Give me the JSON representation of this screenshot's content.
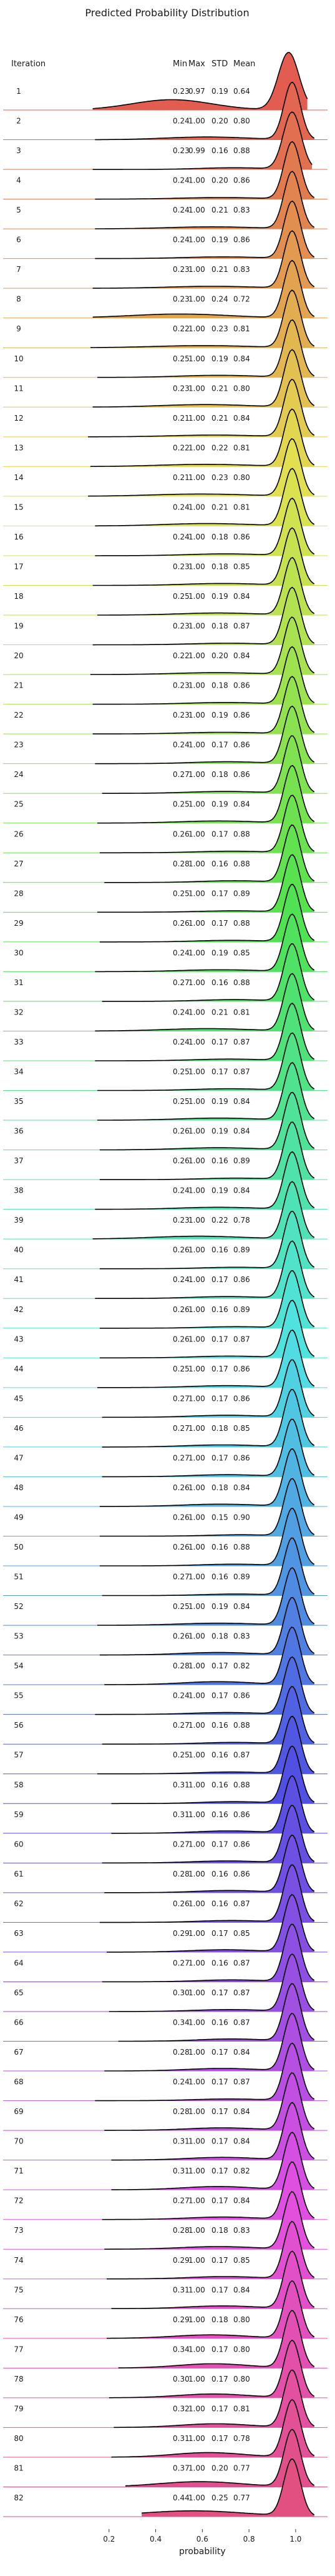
{
  "chart_data": {
    "type": "ridgeline",
    "title": "Predicted Probability Distribution",
    "row_label_header": "Iteration",
    "stat_headers": [
      "Min",
      "Max",
      "STD",
      "Mean"
    ],
    "xlabel": "probability",
    "x_ticks": [
      "0.2",
      "0.4",
      "0.6",
      "0.8",
      "1.0"
    ],
    "x_tick_values": [
      0.2,
      0.4,
      0.6,
      0.8,
      1.0
    ],
    "xlim": [
      0.0,
      1.15
    ],
    "color_scale": "husl rainbow from red (iteration 1) through orange, yellow, green, teal, blue, purple, to pink (iteration 82)",
    "rows": [
      {
        "iteration": "1",
        "min": "0.23",
        "max": "0.97",
        "std": "0.19",
        "mean": "0.64"
      },
      {
        "iteration": "2",
        "min": "0.24",
        "max": "1.00",
        "std": "0.20",
        "mean": "0.80"
      },
      {
        "iteration": "3",
        "min": "0.23",
        "max": "0.99",
        "std": "0.16",
        "mean": "0.88"
      },
      {
        "iteration": "4",
        "min": "0.24",
        "max": "1.00",
        "std": "0.20",
        "mean": "0.86"
      },
      {
        "iteration": "5",
        "min": "0.24",
        "max": "1.00",
        "std": "0.21",
        "mean": "0.83"
      },
      {
        "iteration": "6",
        "min": "0.24",
        "max": "1.00",
        "std": "0.19",
        "mean": "0.86"
      },
      {
        "iteration": "7",
        "min": "0.23",
        "max": "1.00",
        "std": "0.21",
        "mean": "0.83"
      },
      {
        "iteration": "8",
        "min": "0.23",
        "max": "1.00",
        "std": "0.24",
        "mean": "0.72"
      },
      {
        "iteration": "9",
        "min": "0.22",
        "max": "1.00",
        "std": "0.23",
        "mean": "0.81"
      },
      {
        "iteration": "10",
        "min": "0.25",
        "max": "1.00",
        "std": "0.19",
        "mean": "0.84"
      },
      {
        "iteration": "11",
        "min": "0.23",
        "max": "1.00",
        "std": "0.21",
        "mean": "0.80"
      },
      {
        "iteration": "12",
        "min": "0.21",
        "max": "1.00",
        "std": "0.21",
        "mean": "0.84"
      },
      {
        "iteration": "13",
        "min": "0.22",
        "max": "1.00",
        "std": "0.22",
        "mean": "0.81"
      },
      {
        "iteration": "14",
        "min": "0.21",
        "max": "1.00",
        "std": "0.23",
        "mean": "0.80"
      },
      {
        "iteration": "15",
        "min": "0.24",
        "max": "1.00",
        "std": "0.21",
        "mean": "0.81"
      },
      {
        "iteration": "16",
        "min": "0.24",
        "max": "1.00",
        "std": "0.18",
        "mean": "0.86"
      },
      {
        "iteration": "17",
        "min": "0.23",
        "max": "1.00",
        "std": "0.18",
        "mean": "0.85"
      },
      {
        "iteration": "18",
        "min": "0.25",
        "max": "1.00",
        "std": "0.19",
        "mean": "0.84"
      },
      {
        "iteration": "19",
        "min": "0.23",
        "max": "1.00",
        "std": "0.18",
        "mean": "0.87"
      },
      {
        "iteration": "20",
        "min": "0.22",
        "max": "1.00",
        "std": "0.20",
        "mean": "0.84"
      },
      {
        "iteration": "21",
        "min": "0.23",
        "max": "1.00",
        "std": "0.18",
        "mean": "0.86"
      },
      {
        "iteration": "22",
        "min": "0.23",
        "max": "1.00",
        "std": "0.19",
        "mean": "0.86"
      },
      {
        "iteration": "23",
        "min": "0.24",
        "max": "1.00",
        "std": "0.17",
        "mean": "0.86"
      },
      {
        "iteration": "24",
        "min": "0.27",
        "max": "1.00",
        "std": "0.18",
        "mean": "0.86"
      },
      {
        "iteration": "25",
        "min": "0.25",
        "max": "1.00",
        "std": "0.19",
        "mean": "0.84"
      },
      {
        "iteration": "26",
        "min": "0.26",
        "max": "1.00",
        "std": "0.17",
        "mean": "0.88"
      },
      {
        "iteration": "27",
        "min": "0.28",
        "max": "1.00",
        "std": "0.16",
        "mean": "0.88"
      },
      {
        "iteration": "28",
        "min": "0.25",
        "max": "1.00",
        "std": "0.17",
        "mean": "0.89"
      },
      {
        "iteration": "29",
        "min": "0.26",
        "max": "1.00",
        "std": "0.17",
        "mean": "0.88"
      },
      {
        "iteration": "30",
        "min": "0.24",
        "max": "1.00",
        "std": "0.19",
        "mean": "0.85"
      },
      {
        "iteration": "31",
        "min": "0.27",
        "max": "1.00",
        "std": "0.16",
        "mean": "0.88"
      },
      {
        "iteration": "32",
        "min": "0.24",
        "max": "1.00",
        "std": "0.21",
        "mean": "0.81"
      },
      {
        "iteration": "33",
        "min": "0.24",
        "max": "1.00",
        "std": "0.17",
        "mean": "0.87"
      },
      {
        "iteration": "34",
        "min": "0.25",
        "max": "1.00",
        "std": "0.17",
        "mean": "0.87"
      },
      {
        "iteration": "35",
        "min": "0.25",
        "max": "1.00",
        "std": "0.19",
        "mean": "0.84"
      },
      {
        "iteration": "36",
        "min": "0.26",
        "max": "1.00",
        "std": "0.19",
        "mean": "0.84"
      },
      {
        "iteration": "37",
        "min": "0.26",
        "max": "1.00",
        "std": "0.16",
        "mean": "0.89"
      },
      {
        "iteration": "38",
        "min": "0.24",
        "max": "1.00",
        "std": "0.19",
        "mean": "0.84"
      },
      {
        "iteration": "39",
        "min": "0.23",
        "max": "1.00",
        "std": "0.22",
        "mean": "0.78"
      },
      {
        "iteration": "40",
        "min": "0.26",
        "max": "1.00",
        "std": "0.16",
        "mean": "0.89"
      },
      {
        "iteration": "41",
        "min": "0.24",
        "max": "1.00",
        "std": "0.17",
        "mean": "0.86"
      },
      {
        "iteration": "42",
        "min": "0.26",
        "max": "1.00",
        "std": "0.16",
        "mean": "0.89"
      },
      {
        "iteration": "43",
        "min": "0.26",
        "max": "1.00",
        "std": "0.17",
        "mean": "0.87"
      },
      {
        "iteration": "44",
        "min": "0.25",
        "max": "1.00",
        "std": "0.17",
        "mean": "0.86"
      },
      {
        "iteration": "45",
        "min": "0.27",
        "max": "1.00",
        "std": "0.17",
        "mean": "0.86"
      },
      {
        "iteration": "46",
        "min": "0.27",
        "max": "1.00",
        "std": "0.18",
        "mean": "0.85"
      },
      {
        "iteration": "47",
        "min": "0.27",
        "max": "1.00",
        "std": "0.17",
        "mean": "0.86"
      },
      {
        "iteration": "48",
        "min": "0.26",
        "max": "1.00",
        "std": "0.18",
        "mean": "0.84"
      },
      {
        "iteration": "49",
        "min": "0.26",
        "max": "1.00",
        "std": "0.15",
        "mean": "0.90"
      },
      {
        "iteration": "50",
        "min": "0.26",
        "max": "1.00",
        "std": "0.16",
        "mean": "0.88"
      },
      {
        "iteration": "51",
        "min": "0.27",
        "max": "1.00",
        "std": "0.16",
        "mean": "0.89"
      },
      {
        "iteration": "52",
        "min": "0.25",
        "max": "1.00",
        "std": "0.19",
        "mean": "0.84"
      },
      {
        "iteration": "53",
        "min": "0.26",
        "max": "1.00",
        "std": "0.18",
        "mean": "0.83"
      },
      {
        "iteration": "54",
        "min": "0.28",
        "max": "1.00",
        "std": "0.17",
        "mean": "0.82"
      },
      {
        "iteration": "55",
        "min": "0.24",
        "max": "1.00",
        "std": "0.17",
        "mean": "0.86"
      },
      {
        "iteration": "56",
        "min": "0.27",
        "max": "1.00",
        "std": "0.16",
        "mean": "0.88"
      },
      {
        "iteration": "57",
        "min": "0.25",
        "max": "1.00",
        "std": "0.16",
        "mean": "0.87"
      },
      {
        "iteration": "58",
        "min": "0.31",
        "max": "1.00",
        "std": "0.16",
        "mean": "0.88"
      },
      {
        "iteration": "59",
        "min": "0.31",
        "max": "1.00",
        "std": "0.16",
        "mean": "0.86"
      },
      {
        "iteration": "60",
        "min": "0.27",
        "max": "1.00",
        "std": "0.17",
        "mean": "0.86"
      },
      {
        "iteration": "61",
        "min": "0.28",
        "max": "1.00",
        "std": "0.16",
        "mean": "0.86"
      },
      {
        "iteration": "62",
        "min": "0.26",
        "max": "1.00",
        "std": "0.16",
        "mean": "0.87"
      },
      {
        "iteration": "63",
        "min": "0.29",
        "max": "1.00",
        "std": "0.17",
        "mean": "0.85"
      },
      {
        "iteration": "64",
        "min": "0.27",
        "max": "1.00",
        "std": "0.16",
        "mean": "0.87"
      },
      {
        "iteration": "65",
        "min": "0.30",
        "max": "1.00",
        "std": "0.17",
        "mean": "0.87"
      },
      {
        "iteration": "66",
        "min": "0.34",
        "max": "1.00",
        "std": "0.16",
        "mean": "0.87"
      },
      {
        "iteration": "67",
        "min": "0.28",
        "max": "1.00",
        "std": "0.17",
        "mean": "0.84"
      },
      {
        "iteration": "68",
        "min": "0.24",
        "max": "1.00",
        "std": "0.17",
        "mean": "0.87"
      },
      {
        "iteration": "69",
        "min": "0.28",
        "max": "1.00",
        "std": "0.17",
        "mean": "0.84"
      },
      {
        "iteration": "70",
        "min": "0.31",
        "max": "1.00",
        "std": "0.17",
        "mean": "0.84"
      },
      {
        "iteration": "71",
        "min": "0.31",
        "max": "1.00",
        "std": "0.17",
        "mean": "0.82"
      },
      {
        "iteration": "72",
        "min": "0.27",
        "max": "1.00",
        "std": "0.17",
        "mean": "0.84"
      },
      {
        "iteration": "73",
        "min": "0.28",
        "max": "1.00",
        "std": "0.18",
        "mean": "0.83"
      },
      {
        "iteration": "74",
        "min": "0.29",
        "max": "1.00",
        "std": "0.17",
        "mean": "0.85"
      },
      {
        "iteration": "75",
        "min": "0.31",
        "max": "1.00",
        "std": "0.17",
        "mean": "0.84"
      },
      {
        "iteration": "76",
        "min": "0.29",
        "max": "1.00",
        "std": "0.18",
        "mean": "0.80"
      },
      {
        "iteration": "77",
        "min": "0.34",
        "max": "1.00",
        "std": "0.17",
        "mean": "0.80"
      },
      {
        "iteration": "78",
        "min": "0.30",
        "max": "1.00",
        "std": "0.17",
        "mean": "0.80"
      },
      {
        "iteration": "79",
        "min": "0.32",
        "max": "1.00",
        "std": "0.17",
        "mean": "0.81"
      },
      {
        "iteration": "80",
        "min": "0.31",
        "max": "1.00",
        "std": "0.17",
        "mean": "0.78"
      },
      {
        "iteration": "81",
        "min": "0.37",
        "max": "1.00",
        "std": "0.20",
        "mean": "0.77"
      },
      {
        "iteration": "82",
        "min": "0.44",
        "max": "1.00",
        "std": "0.25",
        "mean": "0.77"
      }
    ]
  }
}
